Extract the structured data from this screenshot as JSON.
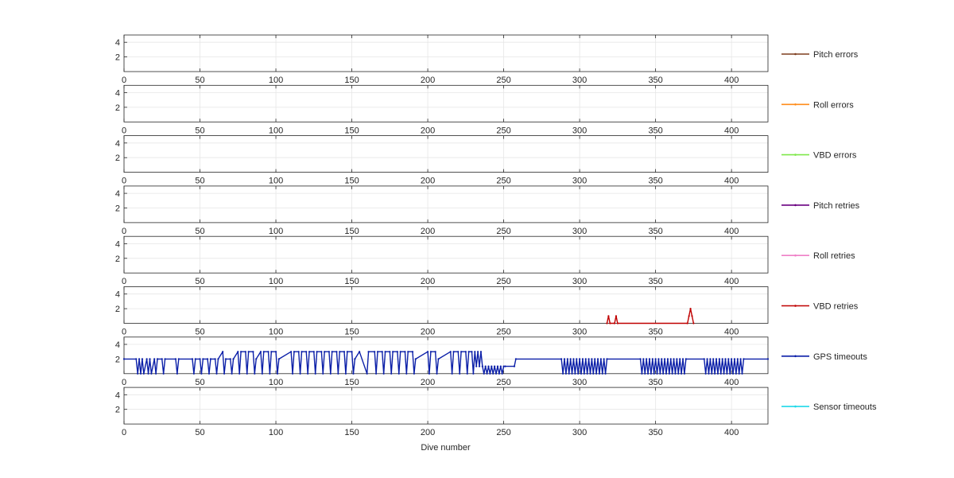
{
  "chart_data": {
    "type": "line",
    "xlabel": "Dive number",
    "xlim": [
      0,
      424
    ],
    "ylim": [
      0,
      5
    ],
    "xticks": [
      0,
      50,
      100,
      150,
      200,
      250,
      300,
      350,
      400
    ],
    "yticks": [
      2,
      4
    ],
    "grid": true,
    "legend_placement": "right",
    "panels": [
      {
        "name": "Pitch errors",
        "color": "#7f3f1f",
        "points": []
      },
      {
        "name": "Roll errors",
        "color": "#ff8c1a",
        "points": []
      },
      {
        "name": "VBD errors",
        "color": "#7fe84a",
        "points": []
      },
      {
        "name": "Pitch retries",
        "color": "#6a0080",
        "points": []
      },
      {
        "name": "Roll retries",
        "color": "#ef7fc6",
        "points": []
      },
      {
        "name": "VBD retries",
        "color": "#c00000",
        "points": [
          [
            318,
            0
          ],
          [
            319,
            1
          ],
          [
            320,
            0
          ],
          [
            323,
            0
          ],
          [
            324,
            1
          ],
          [
            325,
            0
          ],
          [
            371,
            0
          ],
          [
            372,
            1
          ],
          [
            373,
            2
          ],
          [
            374,
            1
          ],
          [
            375,
            0
          ]
        ]
      },
      {
        "name": "GPS timeouts",
        "color": "#0b1fa8",
        "points": [
          [
            0,
            2
          ],
          [
            8,
            2
          ],
          [
            9,
            0
          ],
          [
            10,
            2
          ],
          [
            11,
            0
          ],
          [
            12,
            2
          ],
          [
            13,
            0
          ],
          [
            15,
            2
          ],
          [
            16,
            0
          ],
          [
            17,
            2
          ],
          [
            18,
            0
          ],
          [
            20,
            2
          ],
          [
            21,
            0
          ],
          [
            22,
            2
          ],
          [
            25,
            2
          ],
          [
            26,
            0
          ],
          [
            27,
            2
          ],
          [
            34,
            2
          ],
          [
            35,
            0
          ],
          [
            36,
            2
          ],
          [
            45,
            2
          ],
          [
            46,
            0
          ],
          [
            47,
            2
          ],
          [
            50,
            2
          ],
          [
            51,
            0
          ],
          [
            52,
            2
          ],
          [
            55,
            2
          ],
          [
            56,
            0
          ],
          [
            57,
            2
          ],
          [
            60,
            2
          ],
          [
            61,
            0
          ],
          [
            62,
            2
          ],
          [
            65,
            3
          ],
          [
            66,
            0
          ],
          [
            67,
            2
          ],
          [
            70,
            2
          ],
          [
            71,
            0
          ],
          [
            72,
            2
          ],
          [
            75,
            3
          ],
          [
            76,
            0
          ],
          [
            77,
            3
          ],
          [
            80,
            3
          ],
          [
            81,
            0
          ],
          [
            82,
            3
          ],
          [
            85,
            3
          ],
          [
            86,
            0
          ],
          [
            87,
            2
          ],
          [
            90,
            3
          ],
          [
            91,
            0
          ],
          [
            92,
            3
          ],
          [
            95,
            3
          ],
          [
            96,
            0
          ],
          [
            97,
            3
          ],
          [
            100,
            3
          ],
          [
            101,
            0
          ],
          [
            102,
            2
          ],
          [
            110,
            3
          ],
          [
            111,
            0
          ],
          [
            112,
            3
          ],
          [
            115,
            3
          ],
          [
            116,
            0
          ],
          [
            117,
            3
          ],
          [
            120,
            3
          ],
          [
            121,
            0
          ],
          [
            122,
            3
          ],
          [
            125,
            3
          ],
          [
            126,
            0
          ],
          [
            127,
            3
          ],
          [
            130,
            3
          ],
          [
            131,
            0
          ],
          [
            132,
            3
          ],
          [
            135,
            3
          ],
          [
            136,
            0
          ],
          [
            137,
            3
          ],
          [
            140,
            3
          ],
          [
            141,
            0
          ],
          [
            142,
            3
          ],
          [
            145,
            3
          ],
          [
            146,
            0
          ],
          [
            147,
            3
          ],
          [
            150,
            3
          ],
          [
            151,
            0
          ],
          [
            152,
            2
          ],
          [
            155,
            3
          ],
          [
            160,
            0
          ],
          [
            161,
            3
          ],
          [
            165,
            3
          ],
          [
            166,
            0
          ],
          [
            167,
            3
          ],
          [
            170,
            3
          ],
          [
            171,
            0
          ],
          [
            172,
            3
          ],
          [
            175,
            3
          ],
          [
            176,
            0
          ],
          [
            177,
            3
          ],
          [
            180,
            3
          ],
          [
            181,
            0
          ],
          [
            182,
            3
          ],
          [
            185,
            3
          ],
          [
            186,
            0
          ],
          [
            187,
            3
          ],
          [
            190,
            3
          ],
          [
            191,
            0
          ],
          [
            192,
            2
          ],
          [
            200,
            3
          ],
          [
            201,
            0
          ],
          [
            202,
            3
          ],
          [
            205,
            3
          ],
          [
            206,
            0
          ],
          [
            207,
            2
          ],
          [
            215,
            3
          ],
          [
            216,
            0
          ],
          [
            217,
            3
          ],
          [
            220,
            3
          ],
          [
            221,
            0
          ],
          [
            222,
            3
          ],
          [
            225,
            3
          ],
          [
            226,
            0
          ],
          [
            227,
            3
          ],
          [
            229,
            3
          ],
          [
            230,
            0
          ],
          [
            231,
            3
          ],
          [
            232,
            1
          ],
          [
            233,
            3
          ],
          [
            234,
            1
          ],
          [
            235,
            3
          ],
          [
            236,
            1
          ],
          [
            237,
            0
          ],
          [
            238,
            1
          ],
          [
            239,
            0
          ],
          [
            240,
            1
          ],
          [
            241,
            0
          ],
          [
            242,
            1
          ],
          [
            243,
            0
          ],
          [
            244,
            1
          ],
          [
            245,
            0
          ],
          [
            246,
            1
          ],
          [
            247,
            0
          ],
          [
            248,
            1
          ],
          [
            249,
            0
          ],
          [
            250,
            1
          ],
          [
            251,
            1
          ],
          [
            257,
            1
          ],
          [
            258,
            2
          ],
          [
            288,
            2
          ],
          [
            289,
            0
          ],
          [
            290,
            2
          ],
          [
            291,
            0
          ],
          [
            292,
            2
          ],
          [
            293,
            0
          ],
          [
            294,
            2
          ],
          [
            295,
            0
          ],
          [
            296,
            2
          ],
          [
            297,
            0
          ],
          [
            298,
            2
          ],
          [
            299,
            0
          ],
          [
            300,
            2
          ],
          [
            301,
            0
          ],
          [
            302,
            2
          ],
          [
            303,
            0
          ],
          [
            304,
            2
          ],
          [
            305,
            0
          ],
          [
            306,
            2
          ],
          [
            307,
            0
          ],
          [
            308,
            2
          ],
          [
            309,
            0
          ],
          [
            310,
            2
          ],
          [
            311,
            0
          ],
          [
            312,
            2
          ],
          [
            313,
            0
          ],
          [
            314,
            2
          ],
          [
            315,
            0
          ],
          [
            316,
            2
          ],
          [
            317,
            0
          ],
          [
            318,
            2
          ],
          [
            340,
            2
          ],
          [
            341,
            0
          ],
          [
            342,
            2
          ],
          [
            343,
            0
          ],
          [
            344,
            2
          ],
          [
            345,
            0
          ],
          [
            346,
            2
          ],
          [
            347,
            0
          ],
          [
            348,
            2
          ],
          [
            349,
            0
          ],
          [
            350,
            2
          ],
          [
            351,
            0
          ],
          [
            352,
            2
          ],
          [
            353,
            0
          ],
          [
            354,
            2
          ],
          [
            355,
            0
          ],
          [
            356,
            2
          ],
          [
            357,
            0
          ],
          [
            358,
            2
          ],
          [
            359,
            0
          ],
          [
            360,
            2
          ],
          [
            361,
            0
          ],
          [
            362,
            2
          ],
          [
            363,
            0
          ],
          [
            364,
            2
          ],
          [
            365,
            0
          ],
          [
            366,
            2
          ],
          [
            367,
            0
          ],
          [
            368,
            2
          ],
          [
            369,
            0
          ],
          [
            370,
            2
          ],
          [
            382,
            2
          ],
          [
            383,
            0
          ],
          [
            384,
            2
          ],
          [
            385,
            0
          ],
          [
            386,
            2
          ],
          [
            387,
            0
          ],
          [
            388,
            2
          ],
          [
            389,
            0
          ],
          [
            390,
            2
          ],
          [
            391,
            0
          ],
          [
            392,
            2
          ],
          [
            393,
            0
          ],
          [
            394,
            2
          ],
          [
            395,
            0
          ],
          [
            396,
            2
          ],
          [
            397,
            0
          ],
          [
            398,
            2
          ],
          [
            399,
            0
          ],
          [
            400,
            2
          ],
          [
            401,
            0
          ],
          [
            402,
            2
          ],
          [
            403,
            0
          ],
          [
            404,
            2
          ],
          [
            405,
            0
          ],
          [
            406,
            2
          ],
          [
            407,
            0
          ],
          [
            408,
            2
          ],
          [
            424,
            2
          ]
        ]
      },
      {
        "name": "Sensor timeouts",
        "color": "#1fd8e8",
        "points": []
      }
    ]
  }
}
